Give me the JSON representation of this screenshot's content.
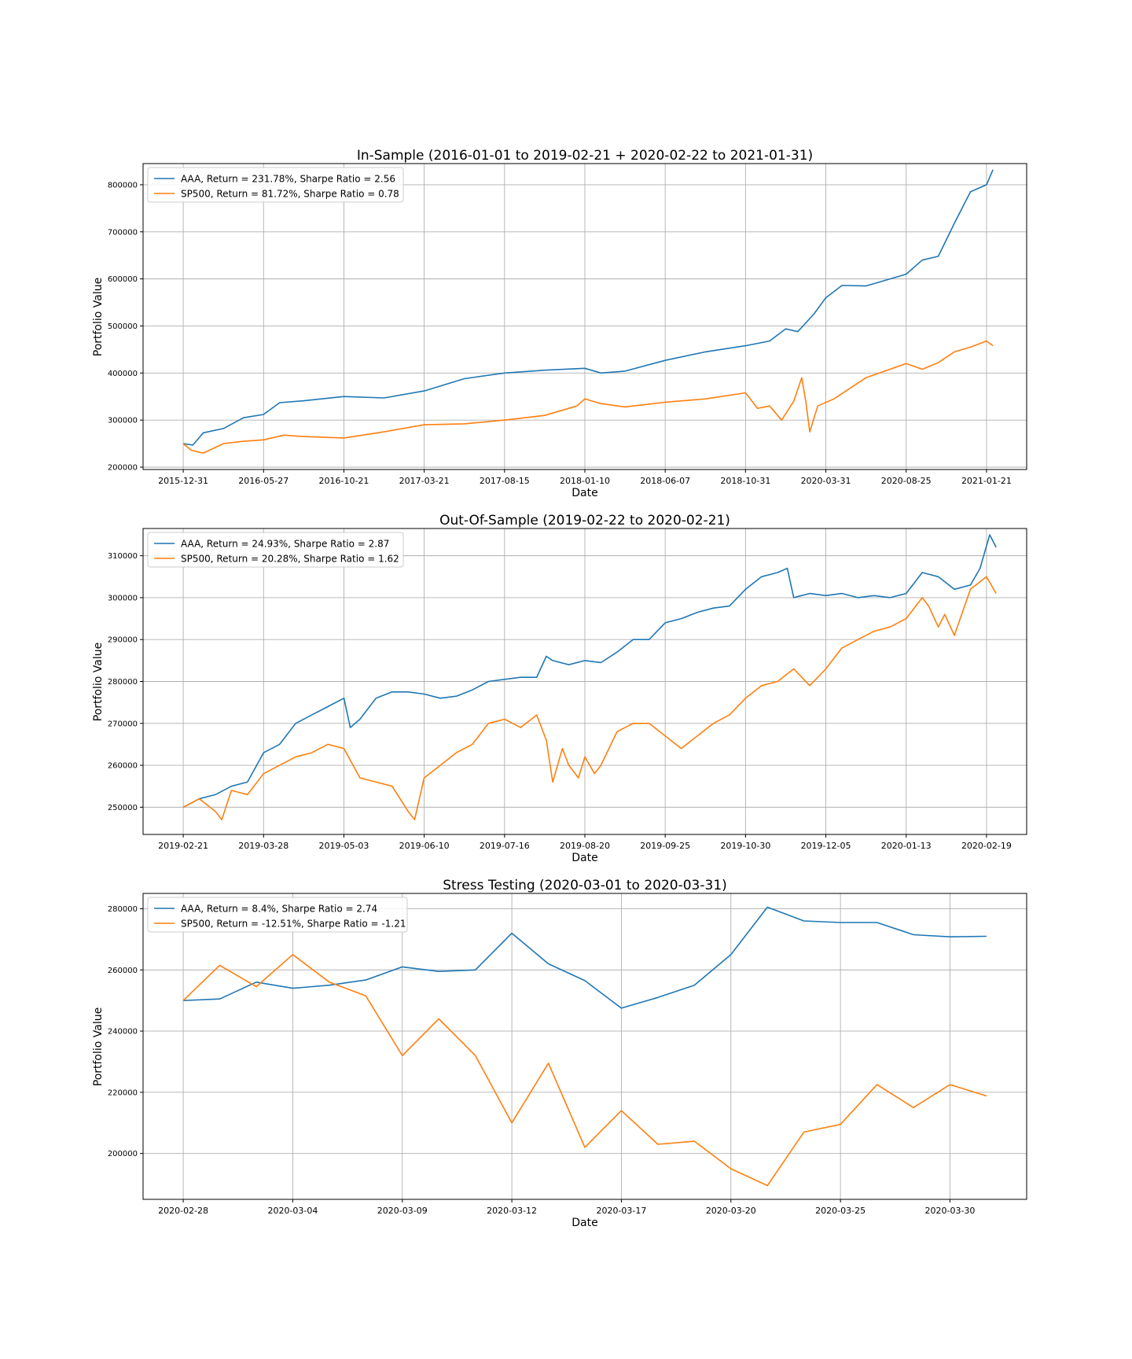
{
  "figure": {
    "background": "#ffffff",
    "grid": true,
    "legend_placement": "upper-left"
  },
  "colors": {
    "AAA": "#1f77b4",
    "SP500": "#ff7f0e",
    "grid": "#b0b0b0",
    "frame": "#000000"
  },
  "chart_data": [
    {
      "type": "line",
      "title": "In-Sample (2016-01-01 to 2019-02-21 + 2020-02-22 to 2021-01-31)",
      "xlabel": "Date",
      "ylabel": "Portfolio Value",
      "grid": true,
      "legend": "top-left",
      "x_is_index": true,
      "xlim": [
        -50,
        1050
      ],
      "ylim": [
        195000,
        845000
      ],
      "x_ticks": [
        {
          "pos": 0,
          "label": "2015-12-31"
        },
        {
          "pos": 100,
          "label": "2016-05-27"
        },
        {
          "pos": 200,
          "label": "2016-10-21"
        },
        {
          "pos": 300,
          "label": "2017-03-21"
        },
        {
          "pos": 400,
          "label": "2017-08-15"
        },
        {
          "pos": 500,
          "label": "2018-01-10"
        },
        {
          "pos": 600,
          "label": "2018-06-07"
        },
        {
          "pos": 700,
          "label": "2018-10-31"
        },
        {
          "pos": 800,
          "label": "2020-03-31"
        },
        {
          "pos": 900,
          "label": "2020-08-25"
        },
        {
          "pos": 1000,
          "label": "2021-01-21"
        }
      ],
      "y_ticks": [
        {
          "value": 200000,
          "label": "200000"
        },
        {
          "value": 300000,
          "label": "300000"
        },
        {
          "value": 400000,
          "label": "400000"
        },
        {
          "value": 500000,
          "label": "500000"
        },
        {
          "value": 600000,
          "label": "600000"
        },
        {
          "value": 700000,
          "label": "700000"
        },
        {
          "value": 800000,
          "label": "800000"
        }
      ],
      "series": [
        {
          "name": "AAA, Return = 231.78%, Sharpe Ratio = 2.56",
          "color_key": "AAA",
          "x": [
            0,
            12,
            25,
            50,
            75,
            100,
            120,
            150,
            200,
            250,
            300,
            350,
            400,
            450,
            500,
            520,
            550,
            600,
            650,
            700,
            730,
            750,
            765,
            785,
            800,
            820,
            850,
            900,
            920,
            940,
            960,
            980,
            1000,
            1008
          ],
          "y": [
            250000,
            247000,
            273000,
            282000,
            305000,
            312000,
            337000,
            341000,
            350000,
            347000,
            362000,
            388000,
            400000,
            406000,
            410000,
            400000,
            404000,
            427000,
            445000,
            458000,
            468000,
            494000,
            488000,
            525000,
            560000,
            586000,
            585000,
            610000,
            640000,
            648000,
            718000,
            785000,
            800000,
            832000
          ]
        },
        {
          "name": "SP500, Return = 81.72%, Sharpe Ratio = 0.78",
          "color_key": "SP500",
          "x": [
            0,
            10,
            25,
            50,
            75,
            100,
            125,
            150,
            200,
            250,
            300,
            350,
            400,
            450,
            490,
            500,
            520,
            550,
            600,
            650,
            700,
            715,
            730,
            745,
            760,
            770,
            775,
            780,
            790,
            810,
            850,
            900,
            920,
            940,
            960,
            980,
            1000,
            1008
          ],
          "y": [
            250000,
            236000,
            230000,
            250000,
            255000,
            258000,
            268000,
            265000,
            262000,
            275000,
            290000,
            292000,
            300000,
            310000,
            330000,
            345000,
            335000,
            328000,
            338000,
            345000,
            358000,
            325000,
            330000,
            300000,
            340000,
            390000,
            340000,
            275000,
            330000,
            345000,
            390000,
            420000,
            408000,
            422000,
            445000,
            455000,
            468000,
            458000
          ]
        }
      ]
    },
    {
      "type": "line",
      "title": "Out-Of-Sample (2019-02-22 to 2020-02-21)",
      "xlabel": "Date",
      "ylabel": "Portfolio Value",
      "grid": true,
      "legend": "top-left",
      "x_is_index": true,
      "xlim": [
        -12.5,
        262.5
      ],
      "ylim": [
        243500,
        316500
      ],
      "x_ticks": [
        {
          "pos": 0,
          "label": "2019-02-21"
        },
        {
          "pos": 25,
          "label": "2019-03-28"
        },
        {
          "pos": 50,
          "label": "2019-05-03"
        },
        {
          "pos": 75,
          "label": "2019-06-10"
        },
        {
          "pos": 100,
          "label": "2019-07-16"
        },
        {
          "pos": 125,
          "label": "2019-08-20"
        },
        {
          "pos": 150,
          "label": "2019-09-25"
        },
        {
          "pos": 175,
          "label": "2019-10-30"
        },
        {
          "pos": 200,
          "label": "2019-12-05"
        },
        {
          "pos": 225,
          "label": "2020-01-13"
        },
        {
          "pos": 250,
          "label": "2020-02-19"
        }
      ],
      "y_ticks": [
        {
          "value": 250000,
          "label": "250000"
        },
        {
          "value": 260000,
          "label": "260000"
        },
        {
          "value": 270000,
          "label": "270000"
        },
        {
          "value": 280000,
          "label": "280000"
        },
        {
          "value": 290000,
          "label": "290000"
        },
        {
          "value": 300000,
          "label": "300000"
        },
        {
          "value": 310000,
          "label": "310000"
        }
      ],
      "series": [
        {
          "name": "AAA, Return = 24.93%, Sharpe Ratio = 2.87",
          "color_key": "AAA",
          "x": [
            0,
            5,
            10,
            15,
            20,
            25,
            30,
            35,
            40,
            45,
            50,
            52,
            55,
            60,
            65,
            70,
            75,
            80,
            85,
            90,
            95,
            100,
            105,
            110,
            113,
            115,
            120,
            125,
            130,
            135,
            140,
            145,
            150,
            155,
            160,
            165,
            170,
            175,
            180,
            185,
            188,
            190,
            195,
            200,
            205,
            210,
            215,
            220,
            225,
            230,
            235,
            240,
            245,
            248,
            251,
            253
          ],
          "y": [
            250000,
            252000,
            253000,
            255000,
            256000,
            263000,
            265000,
            270000,
            272000,
            274000,
            276000,
            269000,
            271000,
            276000,
            277500,
            277500,
            277000,
            276000,
            276500,
            278000,
            280000,
            280500,
            281000,
            281000,
            286000,
            285000,
            284000,
            285000,
            284500,
            287000,
            290000,
            290000,
            294000,
            295000,
            296500,
            297500,
            298000,
            302000,
            305000,
            306000,
            307000,
            300000,
            301000,
            300500,
            301000,
            300000,
            300500,
            300000,
            301000,
            306000,
            305000,
            302000,
            303000,
            307000,
            315000,
            312000
          ]
        },
        {
          "name": "SP500, Return = 20.28%, Sharpe Ratio = 1.62",
          "color_key": "SP500",
          "x": [
            0,
            5,
            10,
            12,
            15,
            20,
            25,
            30,
            35,
            40,
            45,
            50,
            55,
            60,
            65,
            70,
            72,
            75,
            80,
            85,
            90,
            95,
            100,
            105,
            110,
            113,
            115,
            118,
            120,
            123,
            125,
            128,
            130,
            135,
            140,
            145,
            150,
            155,
            160,
            165,
            170,
            175,
            180,
            185,
            190,
            195,
            200,
            205,
            210,
            215,
            220,
            225,
            230,
            232,
            235,
            237,
            240,
            245,
            250,
            253
          ],
          "y": [
            250000,
            252000,
            249000,
            247000,
            254000,
            253000,
            258000,
            260000,
            262000,
            263000,
            265000,
            264000,
            257000,
            256000,
            255000,
            249000,
            247000,
            257000,
            260000,
            263000,
            265000,
            270000,
            271000,
            269000,
            272000,
            266000,
            256000,
            264000,
            260000,
            257000,
            262000,
            258000,
            260000,
            268000,
            270000,
            270000,
            267000,
            264000,
            267000,
            270000,
            272000,
            276000,
            279000,
            280000,
            283000,
            279000,
            283000,
            288000,
            290000,
            292000,
            293000,
            295000,
            300000,
            298000,
            293000,
            296000,
            291000,
            302000,
            305000,
            301000
          ]
        }
      ]
    },
    {
      "type": "line",
      "title": "Stress Testing (2020-03-01 to 2020-03-31)",
      "xlabel": "Date",
      "ylabel": "Portfolio Value",
      "grid": true,
      "legend": "top-left",
      "x_is_index": true,
      "xlim": [
        -1.1,
        23.1
      ],
      "ylim": [
        185000,
        285000
      ],
      "x_ticks": [
        {
          "pos": 0,
          "label": "2020-02-28"
        },
        {
          "pos": 3,
          "label": "2020-03-04"
        },
        {
          "pos": 6,
          "label": "2020-03-09"
        },
        {
          "pos": 9,
          "label": "2020-03-12"
        },
        {
          "pos": 12,
          "label": "2020-03-17"
        },
        {
          "pos": 15,
          "label": "2020-03-20"
        },
        {
          "pos": 18,
          "label": "2020-03-25"
        },
        {
          "pos": 21,
          "label": "2020-03-30"
        }
      ],
      "y_ticks": [
        {
          "value": 200000,
          "label": "200000"
        },
        {
          "value": 220000,
          "label": "220000"
        },
        {
          "value": 240000,
          "label": "240000"
        },
        {
          "value": 260000,
          "label": "260000"
        },
        {
          "value": 280000,
          "label": "280000"
        }
      ],
      "series": [
        {
          "name": "AAA, Return = 8.4%, Sharpe Ratio = 2.74",
          "color_key": "AAA",
          "x": [
            0,
            1,
            2,
            3,
            4,
            5,
            6,
            7,
            8,
            9,
            10,
            11,
            12,
            13,
            14,
            15,
            16,
            17,
            18,
            19,
            20,
            21,
            22
          ],
          "y": [
            250000,
            250500,
            256000,
            254000,
            255000,
            256700,
            261000,
            259500,
            260000,
            272000,
            262000,
            256500,
            247500,
            251000,
            255000,
            265000,
            280500,
            276000,
            275500,
            275500,
            271500,
            270800,
            271000
          ]
        },
        {
          "name": "SP500, Return = -12.51%, Sharpe Ratio = -1.21",
          "color_key": "SP500",
          "x": [
            0,
            1,
            2,
            3,
            4,
            5,
            6,
            7,
            8,
            9,
            10,
            11,
            12,
            13,
            14,
            15,
            16,
            17,
            18,
            19,
            20,
            21,
            22
          ],
          "y": [
            250000,
            261500,
            254500,
            265000,
            256000,
            251500,
            232000,
            244000,
            232000,
            210000,
            229500,
            202000,
            214000,
            203000,
            204000,
            195000,
            189500,
            207000,
            209500,
            222500,
            215000,
            222500,
            218800
          ]
        }
      ]
    }
  ]
}
